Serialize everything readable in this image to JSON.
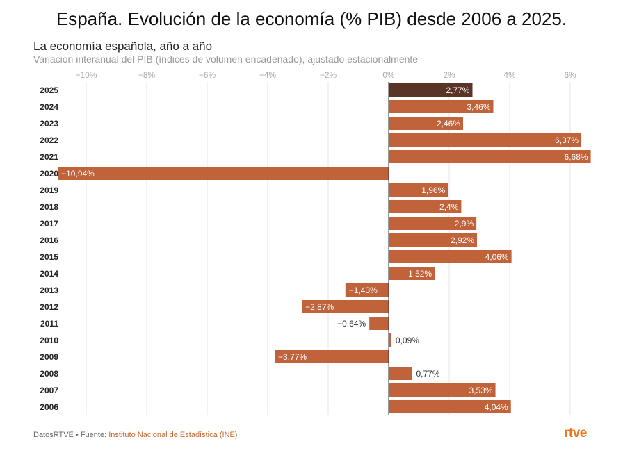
{
  "header": {
    "title": "España. Evolución de la economía (% PIB) desde 2006 a 2025.",
    "subtitle": "La economía española, año a año",
    "description": "Variación interanual del PIB (índices de volumen encadenado), ajustado estacionalmente"
  },
  "footer": {
    "prefix": "DatosRTVE • Fuente: ",
    "source": "Instituto Nacional de Estadística (INE)",
    "logo": "rtve"
  },
  "colors": {
    "bar": "#c0623a",
    "highlight": "#5a3424",
    "label_inside": "#ffffff",
    "label_outside": "#333333",
    "grid": "#e6e6e6",
    "axis_label": "#aaaaaa"
  },
  "chart_data": {
    "type": "bar",
    "orientation": "horizontal",
    "title": "La economía española, año a año",
    "subtitle": "Variación interanual del PIB (índices de volumen encadenado), ajustado estacionalmente",
    "xlabel": "",
    "ylabel": "",
    "xlim": [
      -11,
      7
    ],
    "xticks": [
      -10,
      -8,
      -6,
      -4,
      -2,
      0,
      2,
      4,
      6
    ],
    "xtick_labels": [
      "−10%",
      "−8%",
      "−6%",
      "−4%",
      "−2%",
      "0%",
      "2%",
      "4%",
      "6%"
    ],
    "grid": true,
    "categories": [
      "2025",
      "2024",
      "2023",
      "2022",
      "2021",
      "2020",
      "2019",
      "2018",
      "2017",
      "2016",
      "2015",
      "2014",
      "2013",
      "2012",
      "2011",
      "2010",
      "2009",
      "2008",
      "2007",
      "2006"
    ],
    "values": [
      2.77,
      3.46,
      2.46,
      6.37,
      6.68,
      -10.94,
      1.96,
      2.4,
      2.9,
      2.92,
      4.06,
      1.52,
      -1.43,
      -2.87,
      -0.64,
      0.09,
      -3.77,
      0.77,
      3.53,
      4.04
    ],
    "labels": [
      "2,77%",
      "3,46%",
      "2,46%",
      "6,37%",
      "6,68%",
      "−10,94%",
      "1,96%",
      "2,4%",
      "2,9%",
      "2,92%",
      "4,06%",
      "1,52%",
      "−1,43%",
      "−2,87%",
      "−0,64%",
      "0,09%",
      "−3,77%",
      "0,77%",
      "3,53%",
      "4,04%"
    ],
    "highlighted": [
      "2025"
    ]
  }
}
